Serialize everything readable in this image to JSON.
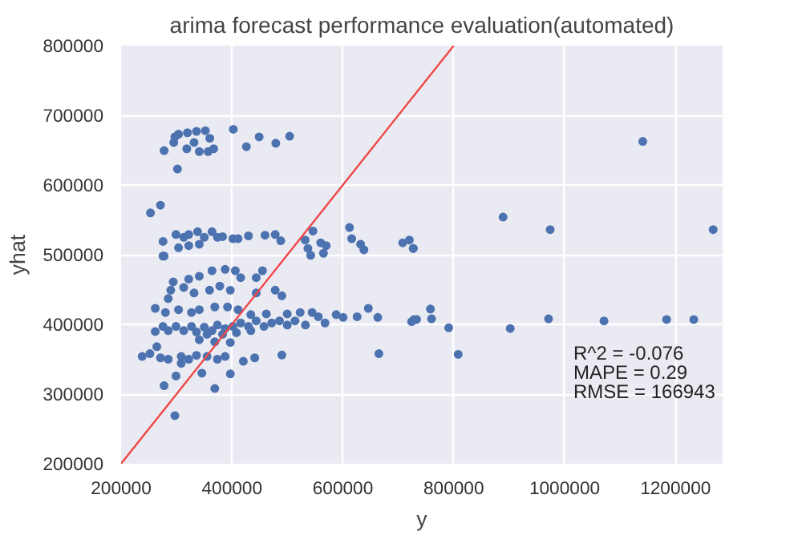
{
  "chart_data": {
    "type": "scatter",
    "title": "arima forecast performance evaluation(automated)",
    "xlabel": "y",
    "ylabel": "yhat",
    "xlim": [
      200000,
      1285000
    ],
    "ylim": [
      200000,
      800000
    ],
    "xticks": [
      200000,
      400000,
      600000,
      800000,
      1000000,
      1200000
    ],
    "yticks": [
      200000,
      300000,
      400000,
      500000,
      600000,
      700000,
      800000
    ],
    "grid": true,
    "annotations": [
      "R^2 = -0.076",
      "MAPE = 0.29",
      "RMSE = 166943"
    ],
    "series": [
      {
        "type": "scatter",
        "marker": "circle",
        "color": "#4c72b0",
        "x": [
          1141000,
          889000,
          974000,
          1268000,
          727000,
          758000,
          760000,
          733000,
          724000,
          791000,
          808000,
          902000,
          971000,
          1071000,
          1184000,
          1233000,
          277600,
          295000,
          297000,
          303600,
          319600,
          336000,
          352000,
          360000,
          341000,
          357000,
          367000,
          318500,
          331600,
          301700,
          402500,
          426000,
          449000,
          479000,
          504000,
          253000,
          271000,
          275600,
          277600,
          299000,
          313000,
          322000,
          338000,
          350000,
          364000,
          373700,
          383000,
          401700,
          411000,
          429700,
          459600,
          478000,
          488000,
          546000,
          532000,
          537000,
          560000,
          570000,
          612000,
          616000,
          632000,
          638000,
          708000,
          720000,
          727000,
          322000,
          341000,
          542000,
          565000,
          275600,
          303600,
          364000,
          387700,
          406000,
          415700,
          341000,
          322000,
          294000,
          289600,
          313000,
          331600,
          359600,
          378000,
          397000,
          443700,
          455000,
          443700,
          478000,
          490000,
          261600,
          280000,
          303600,
          327000,
          341000,
          369000,
          392000,
          434000,
          462000,
          499700,
          523000,
          544500,
          555700,
          588000,
          600500,
          625700,
          646000,
          663000,
          567800,
          285000,
          411000,
          275600,
          285000,
          299000,
          313000,
          327000,
          336000,
          350000,
          364000,
          373700,
          387700,
          401700,
          415700,
          429700,
          443700,
          457700,
          471700,
          485700,
          499700,
          513700,
          532500,
          261600,
          355000,
          383000,
          408000,
          434000,
          728500,
          341000,
          369000,
          397000,
          238000,
          252000,
          264400,
          271000,
          285000,
          308400,
          322000,
          336000,
          355000,
          373700,
          387700,
          420500,
          441000,
          490000,
          665000,
          308400,
          345700,
          299000,
          397000,
          277600,
          369000,
          297000
        ],
        "values": [
          662600,
          554000,
          536000,
          536000,
          509000,
          422000,
          408000,
          407000,
          404000,
          395000,
          357000,
          394000,
          408000,
          405000,
          407000,
          407000,
          649300,
          661000,
          669000,
          673000,
          675000,
          677000,
          678000,
          667000,
          648000,
          648000,
          652000,
          652000,
          661000,
          623000,
          680000,
          655000,
          669000,
          660000,
          670000,
          560000,
          571000,
          519000,
          498000,
          529000,
          525000,
          529000,
          533000,
          525000,
          533000,
          525000,
          526000,
          523000,
          523000,
          527000,
          528000,
          529000,
          520000,
          534000,
          521000,
          509000,
          517000,
          513000,
          539000,
          523000,
          515000,
          507000,
          517000,
          521000,
          509000,
          513000,
          515000,
          499000,
          502000,
          498000,
          510000,
          477000,
          479000,
          477000,
          467000,
          469000,
          465000,
          461000,
          449000,
          453000,
          445000,
          449000,
          455000,
          449000,
          467000,
          477000,
          445000,
          449000,
          441000,
          423000,
          417000,
          421000,
          417000,
          421000,
          425000,
          425000,
          414000,
          415000,
          415000,
          417000,
          417000,
          411000,
          414000,
          410000,
          411000,
          423000,
          410000,
          402000,
          437000,
          421000,
          397000,
          391000,
          397000,
          391000,
          397000,
          389000,
          396000,
          391000,
          399000,
          394000,
          397000,
          402000,
          397000,
          405000,
          397000,
          402000,
          405000,
          399000,
          405000,
          399000,
          389700,
          385700,
          385700,
          388000,
          391000,
          407000,
          378000,
          375000,
          374000,
          354000,
          358000,
          368000,
          352000,
          350000,
          354000,
          350000,
          355500,
          354000,
          350000,
          354000,
          347000,
          352000,
          356000,
          358000,
          344000,
          330000,
          326000,
          329000,
          312000,
          308000,
          269000
        ]
      },
      {
        "type": "line",
        "color": "#f04646",
        "x": [
          200000,
          800000
        ],
        "values": [
          200000,
          800000
        ]
      }
    ]
  }
}
